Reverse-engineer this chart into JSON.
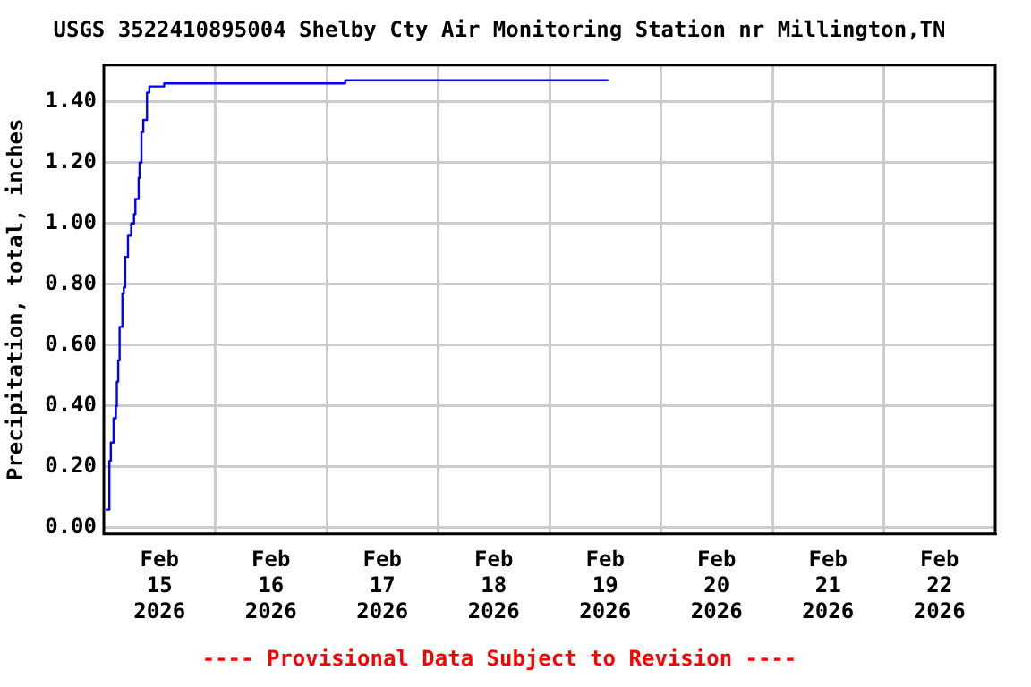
{
  "chart_data": {
    "type": "step",
    "title": "USGS 3522410895004 Shelby Cty Air Monitoring Station nr Millington,TN",
    "ylabel": "Precipitation, total, inches",
    "annotations": [
      "---- Provisional Data Subject to Revision ----"
    ],
    "x": [
      "2026-02-15T00:24",
      "2026-02-15T01:12",
      "2026-02-15T01:30",
      "2026-02-15T02:06",
      "2026-02-15T02:36",
      "2026-02-15T02:48",
      "2026-02-15T03:06",
      "2026-02-15T03:24",
      "2026-02-15T04:00",
      "2026-02-15T04:18",
      "2026-02-15T04:36",
      "2026-02-15T05:12",
      "2026-02-15T05:54",
      "2026-02-15T06:30",
      "2026-02-15T06:48",
      "2026-02-15T07:30",
      "2026-02-15T07:42",
      "2026-02-15T08:06",
      "2026-02-15T08:30",
      "2026-02-15T09:18",
      "2026-02-15T09:48",
      "2026-02-15T13:00",
      "2026-02-17T04:00",
      "2026-02-19T12:40"
    ],
    "series": [
      {
        "color": "#0000ff",
        "values": [
          0.06,
          0.22,
          0.28,
          0.36,
          0.4,
          0.48,
          0.55,
          0.66,
          0.77,
          0.79,
          0.89,
          0.96,
          1.0,
          1.03,
          1.08,
          1.15,
          1.2,
          1.3,
          1.34,
          1.43,
          1.45,
          1.46,
          1.47,
          1.47
        ]
      }
    ],
    "xlim": [
      "2026-02-15T00:00",
      "2026-02-23T00:00"
    ],
    "xticks": [
      {
        "value": "2026-02-15T12:00",
        "label": "Feb\n15\n2026"
      },
      {
        "value": "2026-02-16T12:00",
        "label": "Feb\n16\n2026"
      },
      {
        "value": "2026-02-17T12:00",
        "label": "Feb\n17\n2026"
      },
      {
        "value": "2026-02-18T12:00",
        "label": "Feb\n18\n2026"
      },
      {
        "value": "2026-02-19T12:00",
        "label": "Feb\n19\n2026"
      },
      {
        "value": "2026-02-20T12:00",
        "label": "Feb\n20\n2026"
      },
      {
        "value": "2026-02-21T12:00",
        "label": "Feb\n21\n2026"
      },
      {
        "value": "2026-02-22T12:00",
        "label": "Feb\n22\n2026"
      },
      {
        "value": "2026-02-16T00:00",
        "label": null
      },
      {
        "value": "2026-02-17T00:00",
        "label": null
      },
      {
        "value": "2026-02-18T00:00",
        "label": null
      },
      {
        "value": "2026-02-19T00:00",
        "label": null
      },
      {
        "value": "2026-02-20T00:00",
        "label": null
      },
      {
        "value": "2026-02-21T00:00",
        "label": null
      },
      {
        "value": "2026-02-22T00:00",
        "label": null
      }
    ],
    "ylim": [
      -0.02,
      1.52
    ],
    "yticks": [
      {
        "value": 0,
        "label": "0.00"
      },
      {
        "value": 0.2,
        "label": "0.20"
      },
      {
        "value": 0.4,
        "label": "0.40"
      },
      {
        "value": 0.6,
        "label": "0.60"
      },
      {
        "value": 0.8,
        "label": "0.80"
      },
      {
        "value": 1.0,
        "label": "1.00"
      },
      {
        "value": 1.2,
        "label": "1.20"
      },
      {
        "value": 1.4,
        "label": "1.40"
      }
    ],
    "grid": true,
    "legend": false,
    "marker": "none",
    "line_style": "solid"
  }
}
